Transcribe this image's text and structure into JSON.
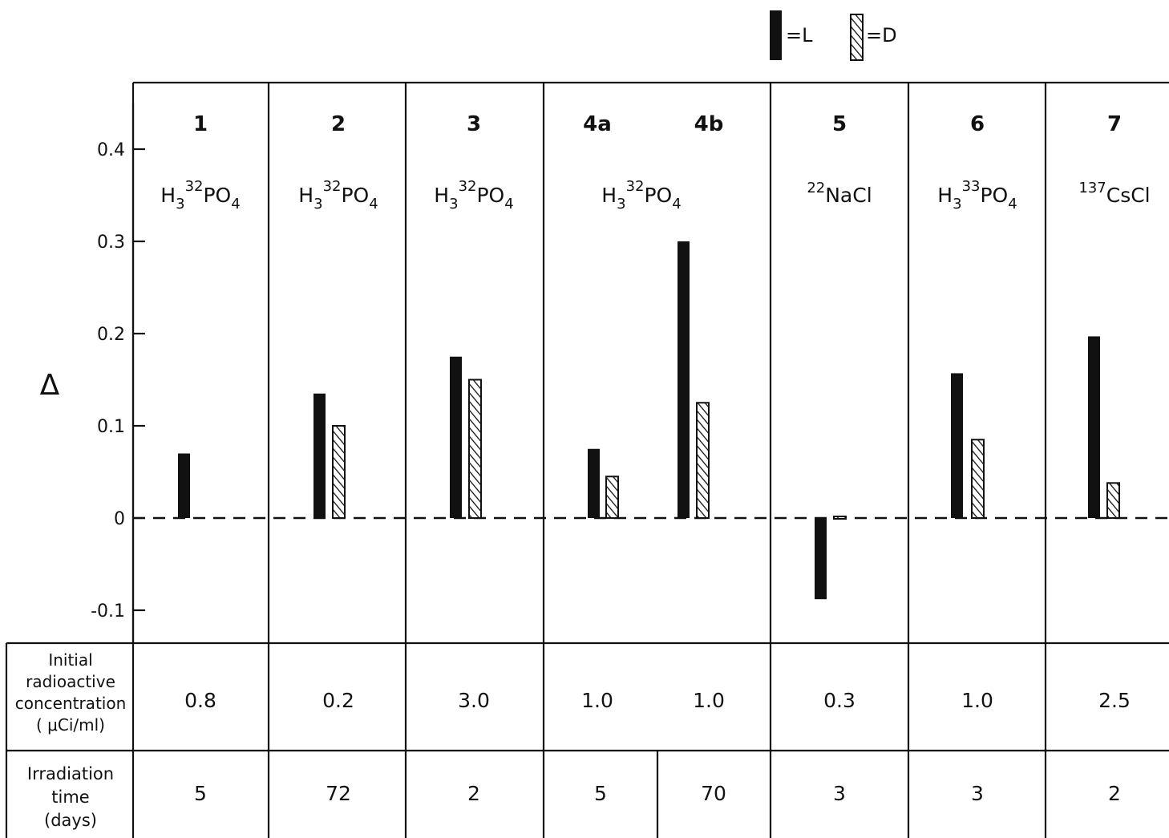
{
  "legend": {
    "L": "=L",
    "D": "=D"
  },
  "chart_data": {
    "type": "bar",
    "ylabel": "Δ",
    "ylim": [
      -0.13,
      0.46
    ],
    "yticks": [
      -0.1,
      0,
      0.1,
      0.2,
      0.3,
      0.4
    ],
    "ytick_labels": [
      "-0.1",
      "0",
      "0.1",
      "0.2",
      "0.3",
      "0.4"
    ],
    "legend_position": "top-right",
    "series": [
      {
        "name": "L",
        "style": "solid",
        "color": "#111111"
      },
      {
        "name": "D",
        "style": "hatched",
        "color": "#111111"
      }
    ],
    "experiments": [
      {
        "id": "1",
        "compound": [
          "H",
          "3",
          "32",
          "PO",
          "4"
        ],
        "L": 0.07,
        "D": null,
        "concentration": "0.8",
        "irradiation_days": "5"
      },
      {
        "id": "2",
        "compound": [
          "H",
          "3",
          "32",
          "PO",
          "4"
        ],
        "L": 0.135,
        "D": 0.1,
        "concentration": "0.2",
        "irradiation_days": "72"
      },
      {
        "id": "3",
        "compound": [
          "H",
          "3",
          "32",
          "PO",
          "4"
        ],
        "L": 0.175,
        "D": 0.15,
        "concentration": "3.0",
        "irradiation_days": "2"
      },
      {
        "id": "4a",
        "compound": [
          "H",
          "3",
          "32",
          "PO",
          "4"
        ],
        "L": 0.075,
        "D": 0.045,
        "concentration": "1.0",
        "irradiation_days": "5"
      },
      {
        "id": "4b",
        "compound": null,
        "L": 0.3,
        "D": 0.125,
        "concentration": "1.0",
        "irradiation_days": "70"
      },
      {
        "id": "5",
        "compound": [
          "",
          "",
          "22",
          "NaCl",
          ""
        ],
        "L": -0.088,
        "D": 0.0,
        "concentration": "0.3",
        "irradiation_days": "3"
      },
      {
        "id": "6",
        "compound": [
          "H",
          "3",
          "33",
          "PO",
          "4"
        ],
        "L": 0.157,
        "D": 0.085,
        "concentration": "1.0",
        "irradiation_days": "3"
      },
      {
        "id": "7",
        "compound": [
          "",
          "",
          "137",
          "CsCl",
          ""
        ],
        "L": 0.197,
        "D": 0.038,
        "concentration": "2.5",
        "irradiation_days": "2"
      }
    ],
    "table_labels": {
      "concentration": [
        "Initial",
        "radioactive",
        "concentration",
        "( μCi/ml)"
      ],
      "irradiation": [
        "Irradiation",
        "time",
        "(days)"
      ]
    }
  }
}
